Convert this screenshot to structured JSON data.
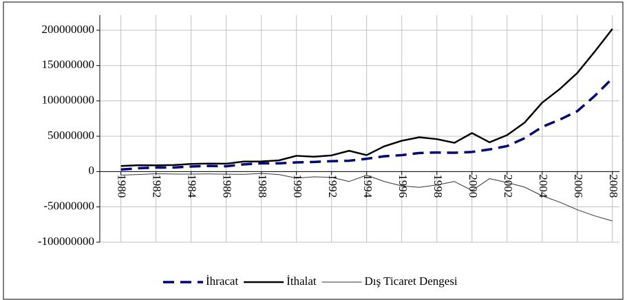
{
  "chart_data": {
    "type": "line",
    "x": [
      1980,
      1981,
      1982,
      1983,
      1984,
      1985,
      1986,
      1987,
      1988,
      1989,
      1990,
      1991,
      1992,
      1993,
      1994,
      1995,
      1996,
      1997,
      1998,
      1999,
      2000,
      2001,
      2002,
      2003,
      2004,
      2005,
      2006,
      2007,
      2008
    ],
    "series": [
      {
        "name": "İhracat",
        "color": "#000080",
        "dash": true,
        "values": [
          2910122,
          4702934,
          5745973,
          5727834,
          7133604,
          7958010,
          7456725,
          10190049,
          11662024,
          11624692,
          12959288,
          13593462,
          14714629,
          15345067,
          18105872,
          21637041,
          23224465,
          26261072,
          26973952,
          26587225,
          27774906,
          31334216,
          36059089,
          47252836,
          63167153,
          73476408,
          85534676,
          107271750,
          132027196
        ]
      },
      {
        "name": "İthalat",
        "color": "#000000",
        "values": [
          7909364,
          8933374,
          8842665,
          9235002,
          10756922,
          11343376,
          11104771,
          14157836,
          14335398,
          15792143,
          22302126,
          21047014,
          22871055,
          29428370,
          23270019,
          35709011,
          43626642,
          48558721,
          45921392,
          40671272,
          54502821,
          41399083,
          51553797,
          69339692,
          97539766,
          116774151,
          139576174,
          170062715,
          201963574
        ]
      },
      {
        "name": "Dış Ticaret Dengesi",
        "color": "#333333",
        "values": [
          -4999242,
          -4230440,
          -3096692,
          -3507168,
          -3623318,
          -3385366,
          -3648046,
          -3967787,
          -2673374,
          -4167451,
          -9342838,
          -7453552,
          -8156426,
          -14083303,
          -5164147,
          -14071970,
          -20402177,
          -22297649,
          -18947440,
          -14084047,
          -26727915,
          -10064867,
          -15494708,
          -22086856,
          -34372613,
          -43297743,
          -54041498,
          -62790965,
          -69936378
        ]
      }
    ],
    "xlim": [
      1978.8,
      2008.4
    ],
    "xticks": [
      1980,
      1982,
      1984,
      1986,
      1988,
      1990,
      1992,
      1994,
      1996,
      1998,
      2000,
      2002,
      2004,
      2006,
      2008
    ],
    "ylim": [
      -100000000,
      200000000
    ],
    "yticks": [
      -100000000,
      -50000000,
      0,
      50000000,
      100000000,
      150000000,
      200000000
    ],
    "grid": true
  }
}
